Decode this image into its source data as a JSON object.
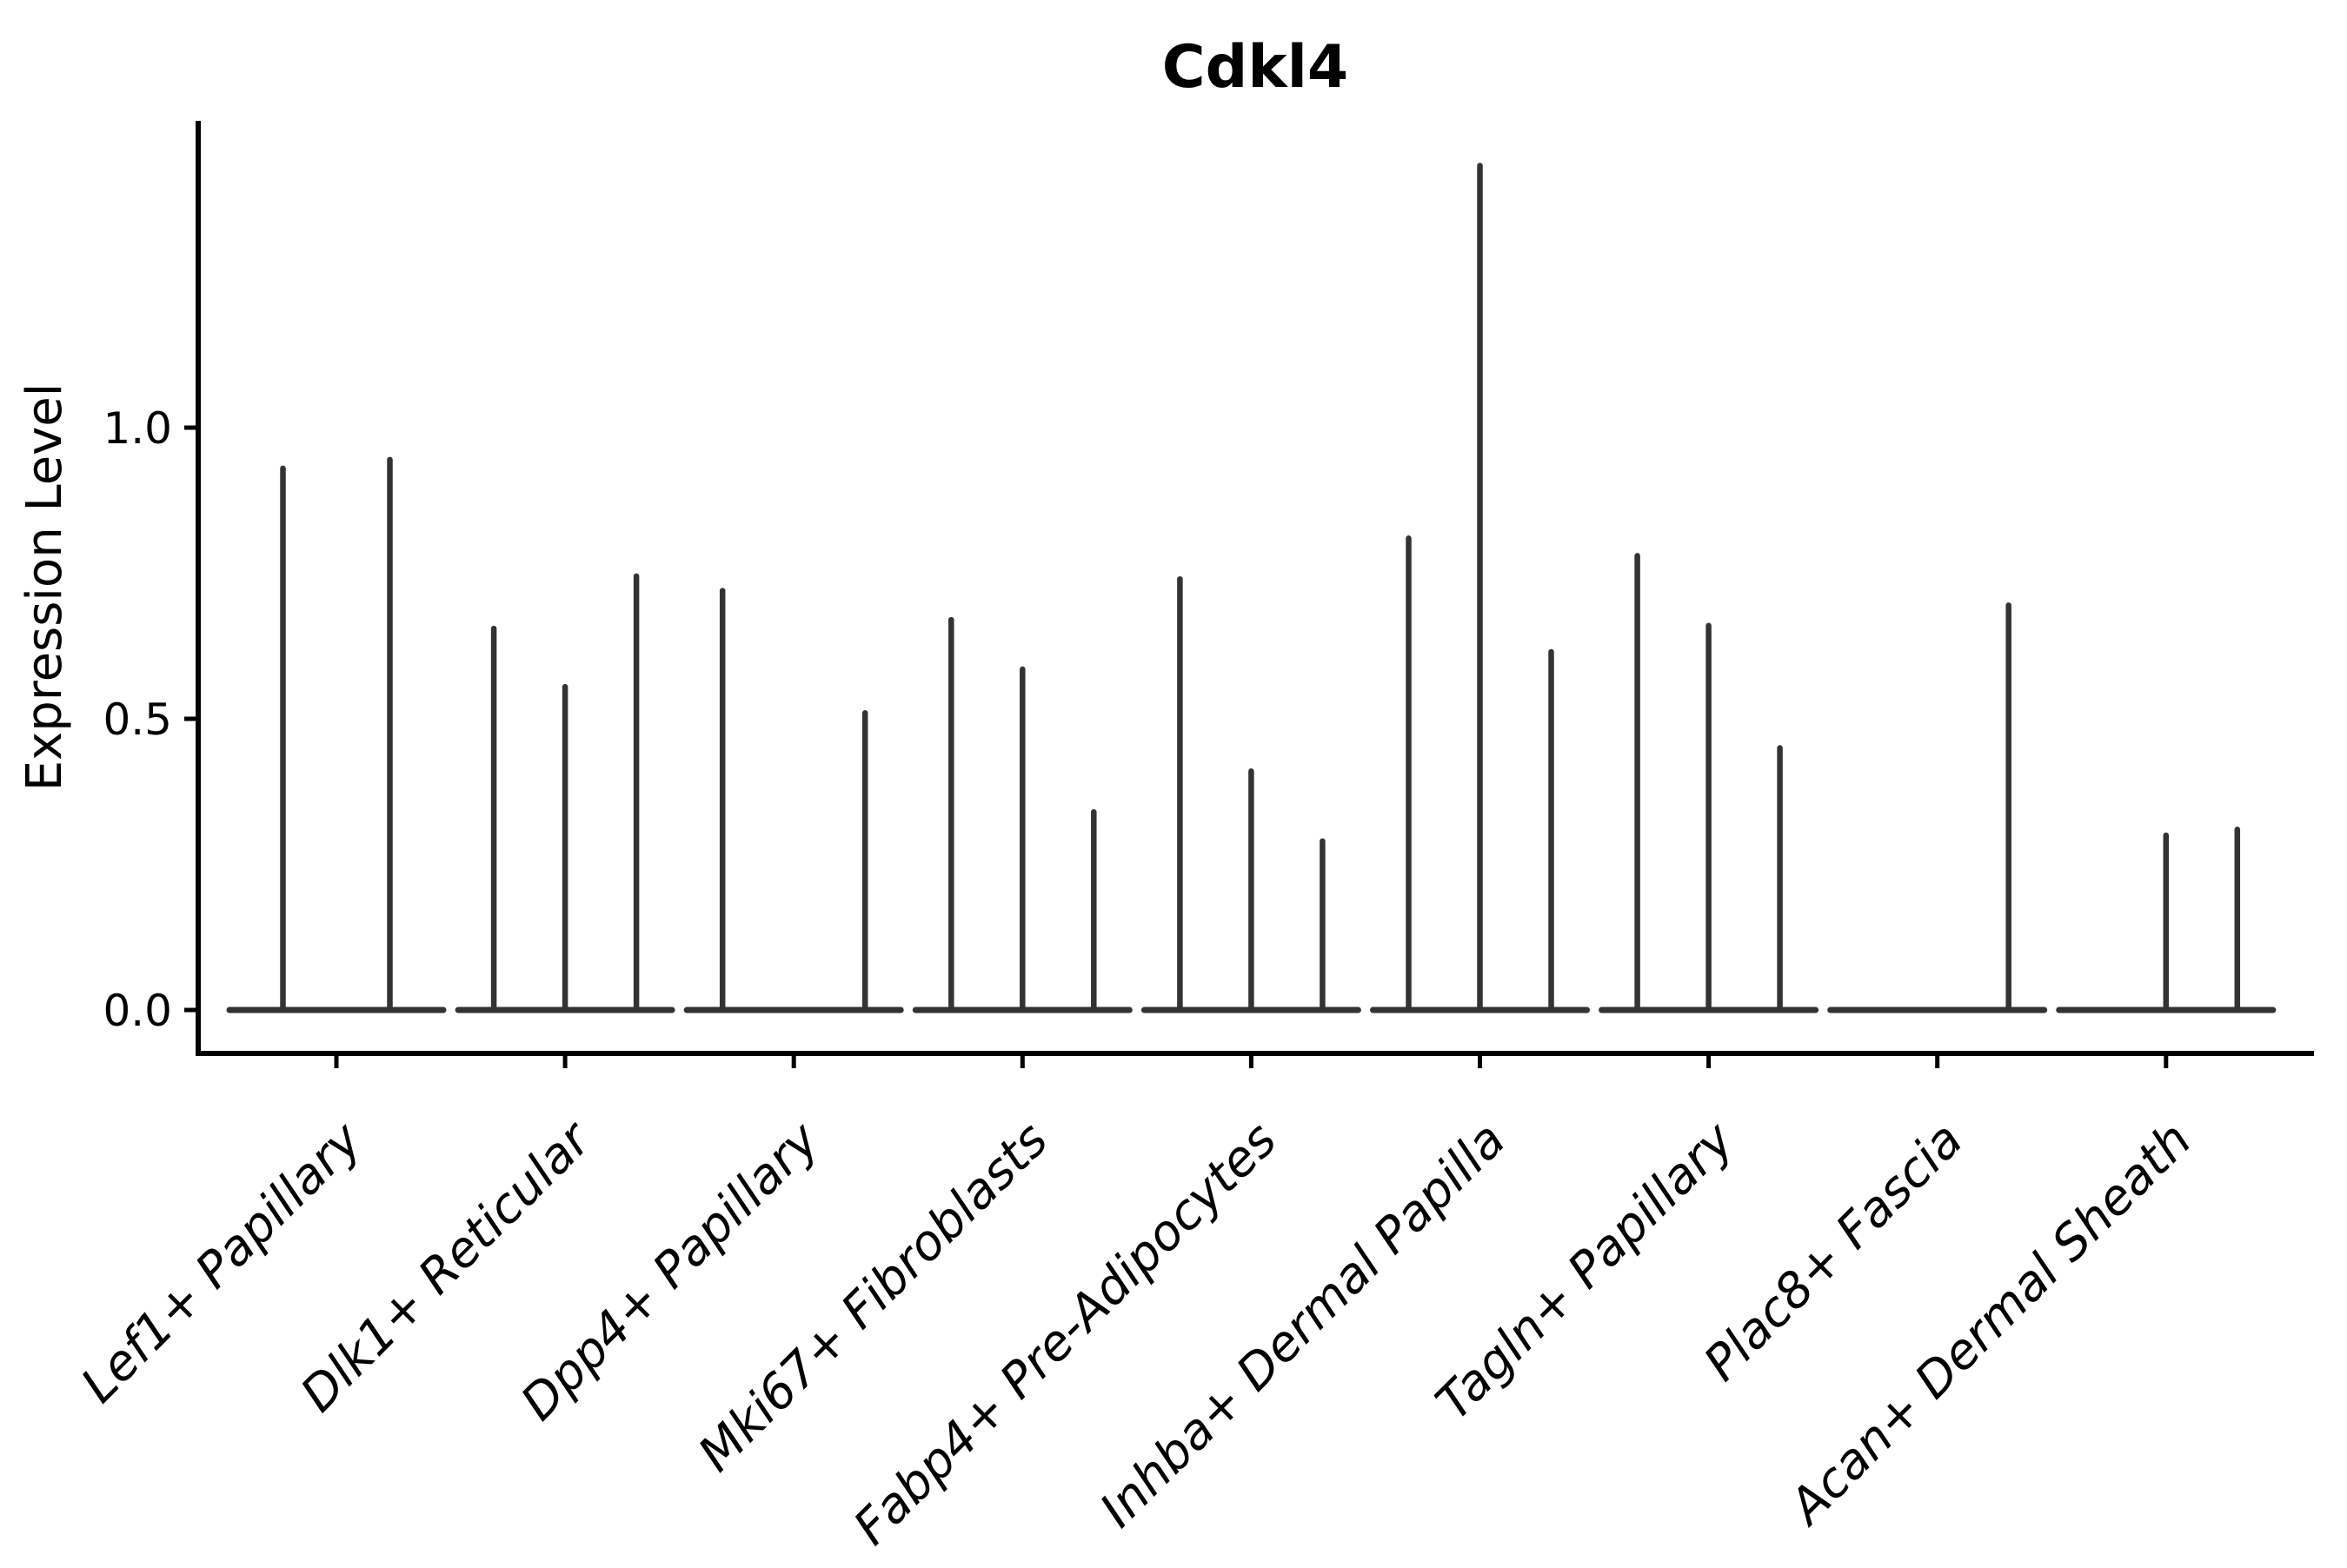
{
  "figure": {
    "title": "Cdkl4"
  },
  "axes": {
    "ylabel": "Expression Level",
    "ytick_labels": [
      "0.0",
      "0.5",
      "1.0"
    ],
    "ytick_values": [
      0.0,
      0.5,
      1.0
    ]
  },
  "style": {
    "violin_color": "#333333",
    "axis_color": "#000000",
    "text_color": "#000000",
    "background": "#ffffff"
  },
  "chart_data": {
    "type": "violin",
    "title": "Cdkl4",
    "xlabel": "",
    "ylabel": "Expression Level",
    "ylim": [
      -0.07,
      1.53
    ],
    "yticks": [
      0.0,
      0.5,
      1.0
    ],
    "grid": false,
    "legend_position": "none",
    "x_tick_rotation_degrees": 45,
    "categories": [
      "Lef1+ Papillary",
      "Dlk1+ Reticular",
      "Dpp4+ Papillary",
      "Mki67+ Fibroblasts",
      "Fabp4+ Pre-Adipocytes",
      "Inhba+ Dermal Papilla",
      "Tagln+ Papillary",
      "Plac8+ Fascia",
      "Acan+ Dermal Sheath"
    ],
    "groups": [
      {
        "label": "Lef1+ Papillary",
        "slots": 2,
        "violins": [
          {
            "slot": 0,
            "peak": 0.93
          },
          {
            "slot": 1,
            "peak": 0.945
          }
        ]
      },
      {
        "label": "Dlk1+ Reticular",
        "slots": 3,
        "violins": [
          {
            "slot": 0,
            "peak": 0.655
          },
          {
            "slot": 1,
            "peak": 0.555
          },
          {
            "slot": 2,
            "peak": 0.745
          }
        ]
      },
      {
        "label": "Dpp4+ Papillary",
        "slots": 3,
        "violins": [
          {
            "slot": 0,
            "peak": 0.72
          },
          {
            "slot": 2,
            "peak": 0.51
          }
        ]
      },
      {
        "label": "Mki67+ Fibroblasts",
        "slots": 3,
        "violins": [
          {
            "slot": 0,
            "peak": 0.67
          },
          {
            "slot": 1,
            "peak": 0.585
          },
          {
            "slot": 2,
            "peak": 0.34
          }
        ]
      },
      {
        "label": "Fabp4+ Pre-Adipocytes",
        "slots": 3,
        "violins": [
          {
            "slot": 0,
            "peak": 0.74
          },
          {
            "slot": 1,
            "peak": 0.41
          },
          {
            "slot": 2,
            "peak": 0.29
          }
        ]
      },
      {
        "label": "Inhba+ Dermal Papilla",
        "slots": 3,
        "violins": [
          {
            "slot": 0,
            "peak": 0.81
          },
          {
            "slot": 1,
            "peak": 1.45
          },
          {
            "slot": 2,
            "peak": 0.615
          }
        ]
      },
      {
        "label": "Tagln+ Papillary",
        "slots": 3,
        "violins": [
          {
            "slot": 0,
            "peak": 0.78
          },
          {
            "slot": 1,
            "peak": 0.66
          },
          {
            "slot": 2,
            "peak": 0.45
          }
        ]
      },
      {
        "label": "Plac8+ Fascia",
        "slots": 3,
        "violins": [
          {
            "slot": 2,
            "peak": 0.695
          }
        ]
      },
      {
        "label": "Acan+ Dermal Sheath",
        "slots": 3,
        "violins": [
          {
            "slot": 1,
            "peak": 0.3
          },
          {
            "slot": 2,
            "peak": 0.31
          }
        ]
      }
    ]
  }
}
